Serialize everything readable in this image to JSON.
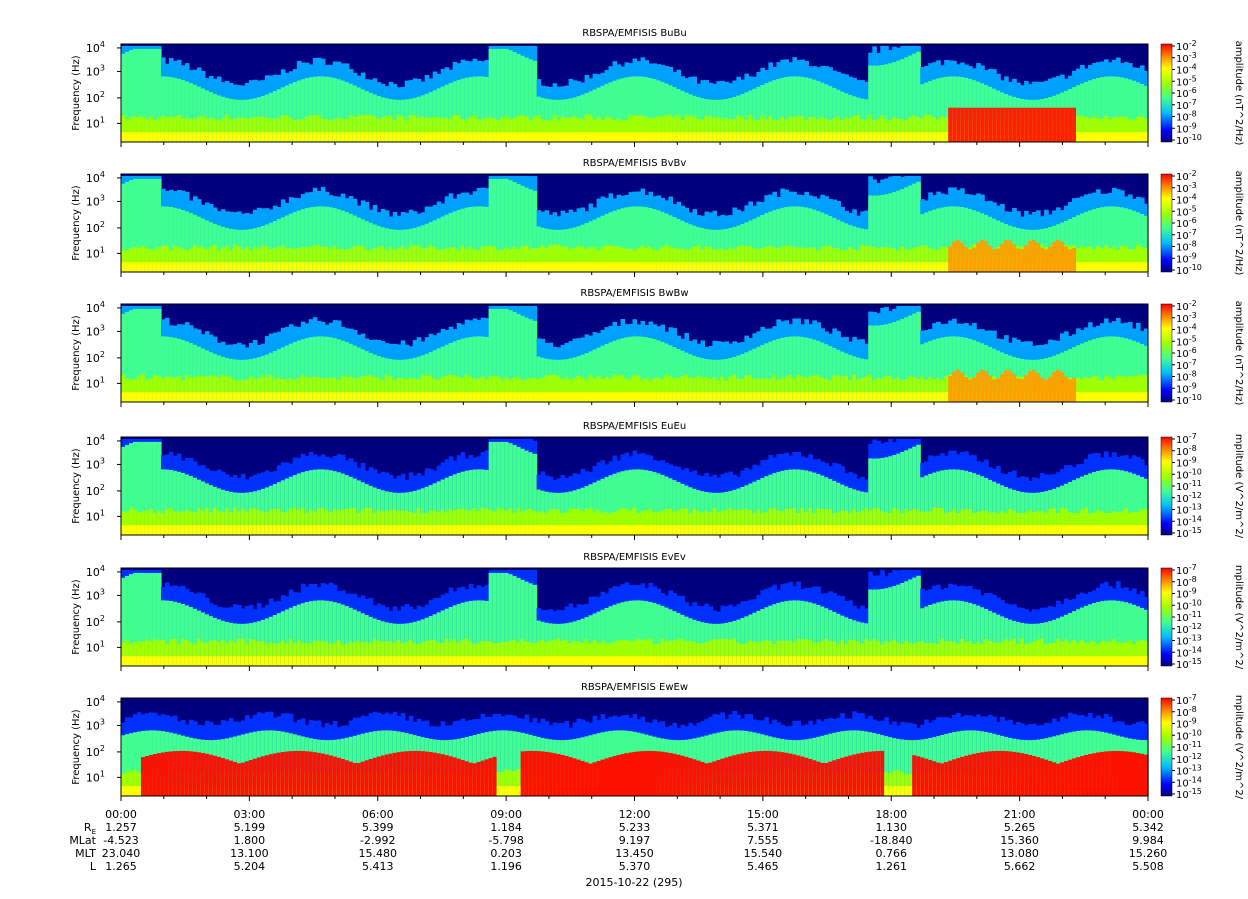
{
  "chart_data": {
    "type": "heatmap",
    "date_label": "2015-10-22 (295)",
    "x_ticks": [
      "00:00",
      "03:00",
      "06:00",
      "09:00",
      "12:00",
      "15:00",
      "18:00",
      "21:00",
      "00:00"
    ],
    "ephemeris": {
      "labels": [
        "R",
        "MLat",
        "MLT",
        "L"
      ],
      "re_subscript": "E",
      "rows": [
        [
          "1.257",
          "5.199",
          "5.399",
          "1.184",
          "5.233",
          "5.371",
          "1.130",
          "5.265",
          "5.342"
        ],
        [
          "-4.523",
          "1.800",
          "-2.992",
          "-5.798",
          "9.197",
          "7.555",
          "-18.840",
          "15.360",
          "9.984"
        ],
        [
          "23.040",
          "13.100",
          "15.480",
          "0.203",
          "13.450",
          "15.540",
          "0.766",
          "13.080",
          "15.260"
        ],
        [
          "1.265",
          "5.204",
          "5.413",
          "1.196",
          "5.370",
          "5.465",
          "1.261",
          "5.662",
          "5.508"
        ]
      ]
    },
    "y_axis": {
      "label": "Frequency (Hz)",
      "scale": "log",
      "ticks": [
        {
          "base": "10",
          "exp": "1"
        },
        {
          "base": "10",
          "exp": "2"
        },
        {
          "base": "10",
          "exp": "3"
        },
        {
          "base": "10",
          "exp": "4"
        }
      ]
    },
    "panels": [
      {
        "title": "RBSPA/EMFISIS  BuBu",
        "cb_label": "amplitude (nT^2/Hz)",
        "cb_ticks": [
          "-2",
          "-3",
          "-4",
          "-5",
          "-6",
          "-7",
          "-8",
          "-9",
          "-10"
        ],
        "kind": "B",
        "strong": "u",
        "colors": {}
      },
      {
        "title": "RBSPA/EMFISIS  BvBv",
        "cb_label": "amplitude (nT^2/Hz)",
        "cb_ticks": [
          "-2",
          "-3",
          "-4",
          "-5",
          "-6",
          "-7",
          "-8",
          "-9",
          "-10"
        ],
        "kind": "B",
        "strong": "v"
      },
      {
        "title": "RBSPA/EMFISIS  BwBw",
        "cb_label": "amplitude (nT^2/Hz)",
        "cb_ticks": [
          "-2",
          "-3",
          "-4",
          "-5",
          "-6",
          "-7",
          "-8",
          "-9",
          "-10"
        ],
        "kind": "B",
        "strong": "w"
      },
      {
        "title": "RBSPA/EMFISIS  EuEu",
        "cb_label": "mplitude (V^2/m^2/",
        "cb_ticks": [
          "-7",
          "-8",
          "-9",
          "-10",
          "-11",
          "-12",
          "-13",
          "-14",
          "-15"
        ],
        "kind": "E",
        "strong": "u"
      },
      {
        "title": "RBSPA/EMFISIS  EvEv",
        "cb_label": "mplitude (V^2/m^2/",
        "cb_ticks": [
          "-7",
          "-8",
          "-9",
          "-10",
          "-11",
          "-12",
          "-13",
          "-14",
          "-15"
        ],
        "kind": "E",
        "strong": "v"
      },
      {
        "title": "RBSPA/EMFISIS  EwEw",
        "cb_label": "mplitude (V^2/m^2/",
        "cb_ticks": [
          "-7",
          "-8",
          "-9",
          "-10",
          "-11",
          "-12",
          "-13",
          "-14",
          "-15"
        ],
        "kind": "E",
        "strong": "w"
      }
    ],
    "colormap": [
      "#00007f",
      "#0000ff",
      "#00a0ff",
      "#00ffff",
      "#40ff80",
      "#a0ff00",
      "#ffff00",
      "#ff8000",
      "#ff0000"
    ]
  }
}
